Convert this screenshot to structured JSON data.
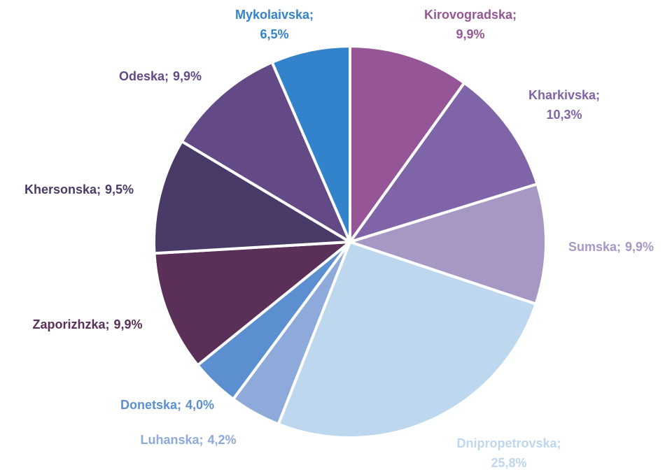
{
  "chart_data": {
    "type": "pie",
    "categories": [
      "Kirovogradska;",
      "Kharkivska;",
      "Sumska;",
      "Dnipropetrovska;",
      "Luhanska;",
      "Donetska;",
      "Zaporizhzka;",
      "Khersonska;",
      "Odeska;",
      "Mykolaivska;"
    ],
    "values": [
      9.9,
      10.3,
      9.9,
      25.8,
      4.2,
      4.0,
      9.9,
      9.5,
      9.9,
      6.5
    ],
    "value_labels": [
      "9,9%",
      "10,3%",
      "9,9%",
      "25,8%",
      "4,2%",
      "4,0%",
      "9,9%",
      "9,5%",
      "9,9%",
      "6,5%"
    ],
    "colors": [
      "#955596",
      "#8064a8",
      "#a797c5",
      "#bdd7ee",
      "#8eaadb",
      "#5b8fd0",
      "#5b3058",
      "#4a3a68",
      "#634a87",
      "#3283cc"
    ]
  }
}
